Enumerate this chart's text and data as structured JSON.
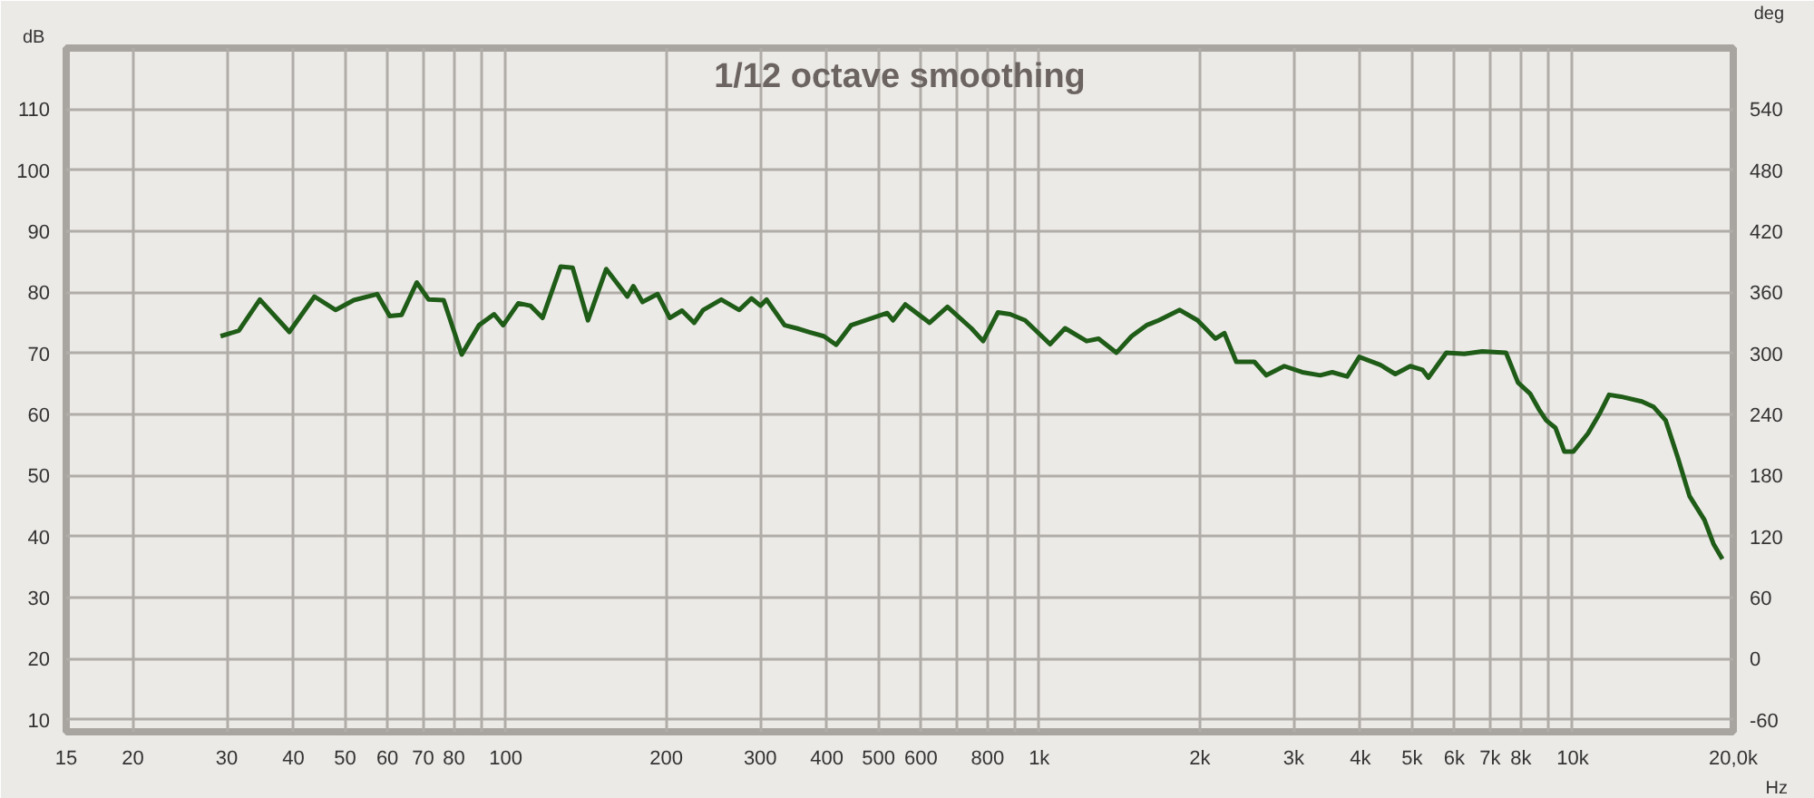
{
  "chart_data": {
    "type": "line",
    "title": "1/12 octave smoothing",
    "xlabel": "Hz",
    "ylabel": "dB",
    "y2label": "deg",
    "log": "x",
    "grid": true,
    "marker": "none",
    "line_style": "solid",
    "xlim": [
      15,
      20000
    ],
    "ylim": [
      8,
      120
    ],
    "y2lim": [
      -72,
      600
    ],
    "xticks": [
      15,
      20,
      30,
      40,
      50,
      60,
      70,
      80,
      {
        "value": 90,
        "label": null
      },
      100,
      200,
      300,
      400,
      500,
      600,
      {
        "value": 700,
        "label": null
      },
      800,
      {
        "value": 900,
        "label": null
      },
      {
        "value": 1000,
        "label": "1k"
      },
      {
        "value": 2000,
        "label": "2k"
      },
      {
        "value": 3000,
        "label": "3k"
      },
      {
        "value": 4000,
        "label": "4k"
      },
      {
        "value": 5000,
        "label": "5k"
      },
      {
        "value": 6000,
        "label": "6k"
      },
      {
        "value": 7000,
        "label": "7k"
      },
      {
        "value": 8000,
        "label": "8k"
      },
      {
        "value": 9000,
        "label": null
      },
      {
        "value": 10000,
        "label": "10k"
      },
      {
        "value": 20000,
        "label": "20,0k"
      }
    ],
    "yticks": [
      10,
      20,
      30,
      40,
      50,
      60,
      70,
      80,
      90,
      100,
      110
    ],
    "y2ticks": [
      -60,
      0,
      60,
      120,
      180,
      240,
      300,
      360,
      420,
      480,
      540
    ],
    "series": [
      {
        "color": "#1f5c17",
        "x": [
          29.2,
          31.6,
          34.6,
          39.3,
          43.8,
          48,
          51.9,
          57.4,
          60.6,
          63.8,
          68.1,
          71.7,
          76.5,
          82.7,
          89.1,
          95.1,
          98.9,
          105.6,
          111.2,
          117.2,
          126.7,
          133.5,
          142.6,
          154.3,
          169,
          173.5,
          180.4,
          192.6,
          203,
          214,
          225.5,
          234.5,
          253.5,
          274,
          288.8,
          300.3,
          308.3,
          333.2,
          351,
          369.8,
          394.7,
          416.3,
          444,
          480,
          519,
          532,
          561,
          623,
          673,
          746,
          785,
          837,
          882,
          941,
          1048,
          1118,
          1227,
          1292,
          1396,
          1490,
          1589,
          1675,
          1834,
          1981,
          2140,
          2224,
          2341,
          2531,
          2665,
          2880,
          3112,
          3363,
          3542,
          3778,
          3981,
          4359,
          4650,
          4962,
          5228,
          5365,
          5796,
          6263,
          6769,
          7498,
          7898,
          8320,
          8647,
          8924,
          9280,
          9645,
          10030,
          10690,
          11260,
          11700,
          12320,
          13480,
          14190,
          14940,
          15730,
          16560,
          17660,
          18360,
          19080
        ],
        "values": [
          72.8,
          73.7,
          78.8,
          73.5,
          79.3,
          77.1,
          78.7,
          79.7,
          76.1,
          76.3,
          81.6,
          78.8,
          78.7,
          69.8,
          74.6,
          76.4,
          74.6,
          78.2,
          77.8,
          75.8,
          84.2,
          84.0,
          75.4,
          83.8,
          79.3,
          81.0,
          78.4,
          79.7,
          75.8,
          77.0,
          75.0,
          77.1,
          78.8,
          77.1,
          79.0,
          77.8,
          78.8,
          74.6,
          74.1,
          73.5,
          72.8,
          71.4,
          74.6,
          75.6,
          76.6,
          75.4,
          78.0,
          75.0,
          77.6,
          74.1,
          72.0,
          76.7,
          76.4,
          75.4,
          71.5,
          74.1,
          72.0,
          72.4,
          70.1,
          72.8,
          74.6,
          75.4,
          77.1,
          75.4,
          72.4,
          73.3,
          68.6,
          68.6,
          66.4,
          67.9,
          66.9,
          66.4,
          66.9,
          66.2,
          69.4,
          68.1,
          66.6,
          67.9,
          67.3,
          66.0,
          70.1,
          69.9,
          70.3,
          70.1,
          65.2,
          63.4,
          60.8,
          59.0,
          57.8,
          53.9,
          53.9,
          56.9,
          60.3,
          63.2,
          62.9,
          62.1,
          61.2,
          59.0,
          53.0,
          46.6,
          42.7,
          38.8,
          36.3
        ]
      }
    ]
  }
}
